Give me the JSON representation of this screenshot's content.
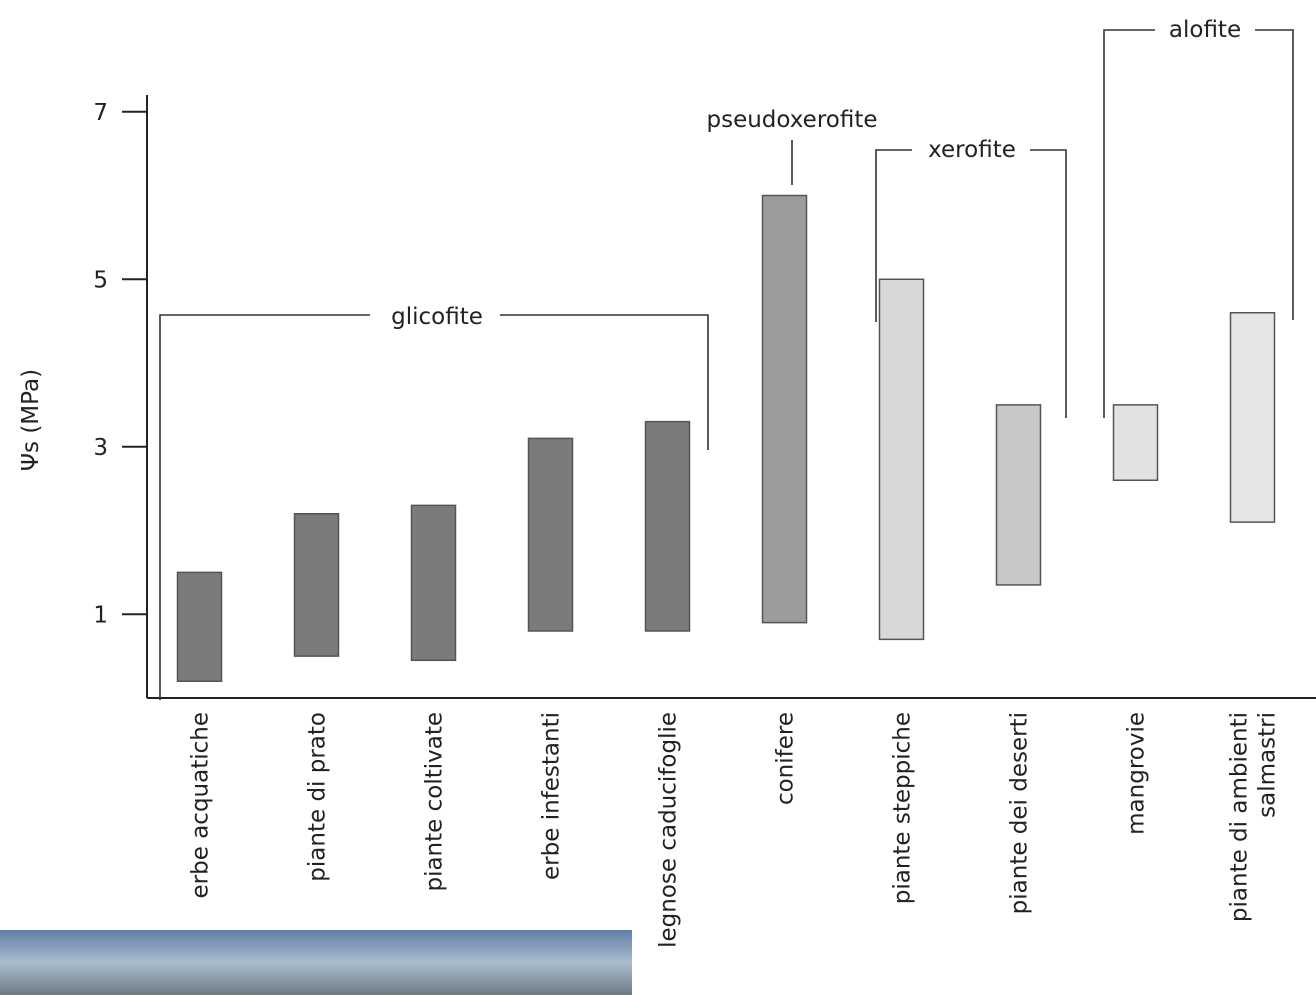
{
  "chart_data": {
    "type": "floating-bar",
    "y_label": "Ψs (MPa)",
    "categories": [
      [
        "erbe acquatiche"
      ],
      [
        "piante di prato"
      ],
      [
        "piante coltivate"
      ],
      [
        "erbe infestanti"
      ],
      [
        "legnose caducifoglie"
      ],
      [
        "conifere"
      ],
      [
        "piante steppiche"
      ],
      [
        "piante dei deserti"
      ],
      [
        "mangrovie"
      ],
      [
        "piante di ambienti",
        "salmastri"
      ]
    ],
    "low": [
      0.2,
      0.5,
      0.45,
      0.8,
      0.8,
      0.9,
      0.7,
      1.35,
      2.6,
      2.1
    ],
    "high": [
      1.5,
      2.2,
      2.3,
      3.1,
      3.3,
      6.0,
      5.0,
      3.5,
      3.5,
      4.6
    ],
    "colors": [
      "#7b7b7b",
      "#7b7b7b",
      "#7b7b7b",
      "#7b7b7b",
      "#7b7b7b",
      "#9c9c9c",
      "#d8d8d8",
      "#c8c8c8",
      "#e2e2e2",
      "#e6e6e6"
    ],
    "ylim": [
      0,
      7.2
    ],
    "yticks": [
      1,
      3,
      5,
      7
    ],
    "annotations": [
      "glicofite",
      "pseudoxerofite",
      "xerofite",
      "alofite"
    ]
  }
}
